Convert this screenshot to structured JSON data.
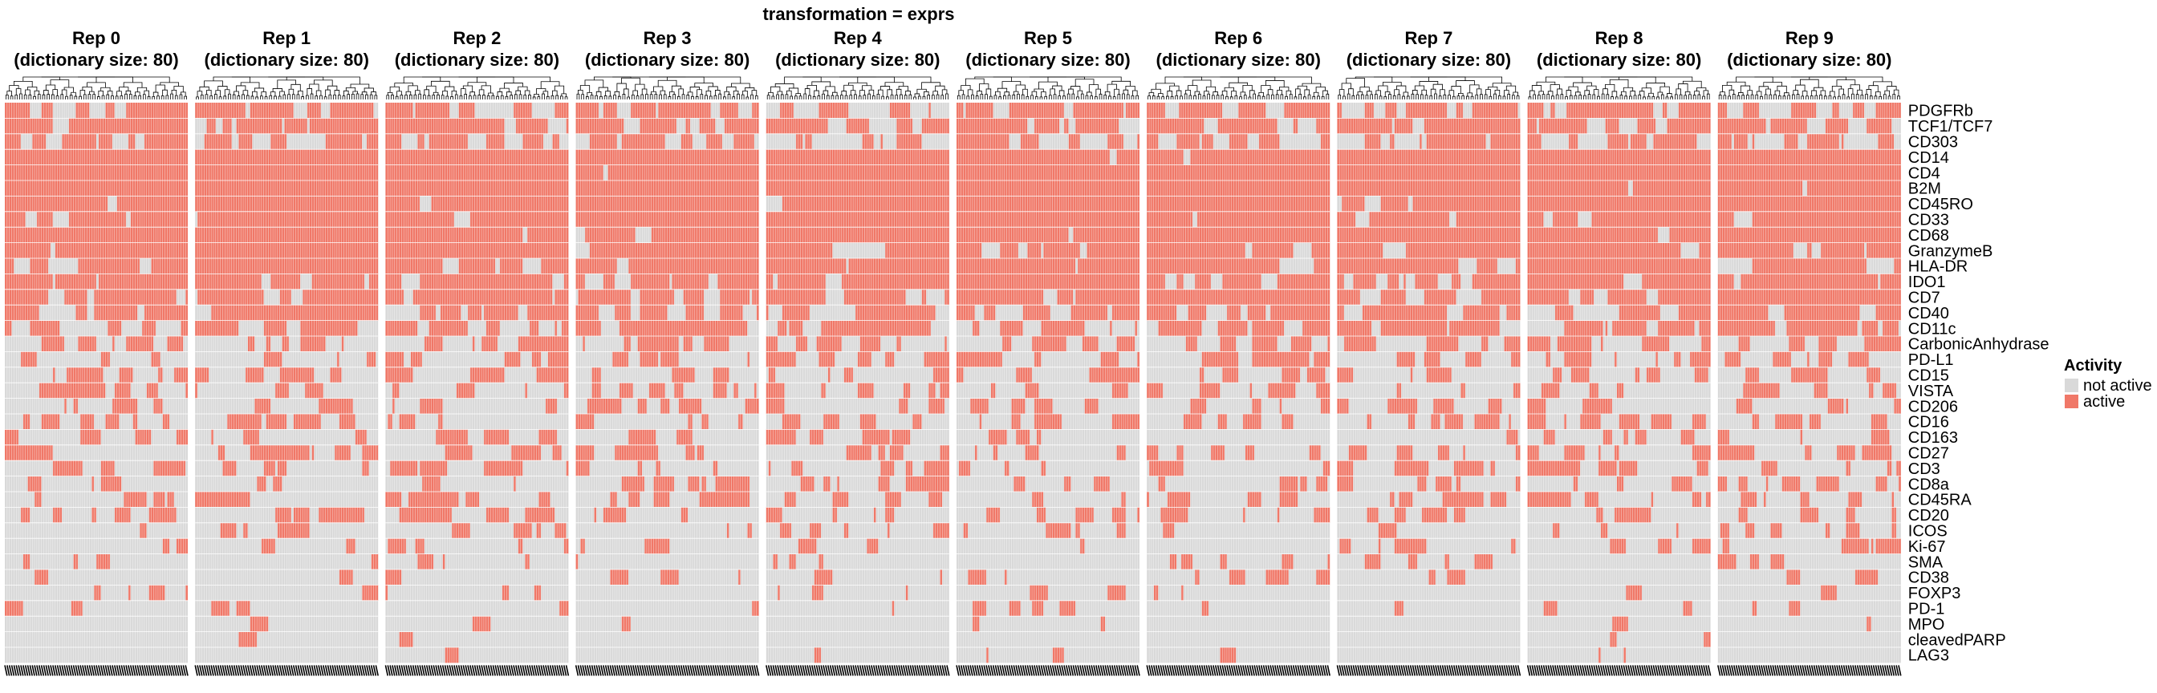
{
  "chart_data": {
    "type": "heatmap",
    "title": "transformation = exprs",
    "facets": [
      {
        "label": "Rep 0",
        "sublabel": "(dictionary size: 80)"
      },
      {
        "label": "Rep 1",
        "sublabel": "(dictionary size: 80)"
      },
      {
        "label": "Rep 2",
        "sublabel": "(dictionary size: 80)"
      },
      {
        "label": "Rep 3",
        "sublabel": "(dictionary size: 80)"
      },
      {
        "label": "Rep 4",
        "sublabel": "(dictionary size: 80)"
      },
      {
        "label": "Rep 5",
        "sublabel": "(dictionary size: 80)"
      },
      {
        "label": "Rep 6",
        "sublabel": "(dictionary size: 80)"
      },
      {
        "label": "Rep 7",
        "sublabel": "(dictionary size: 80)"
      },
      {
        "label": "Rep 8",
        "sublabel": "(dictionary size: 80)"
      },
      {
        "label": "Rep 9",
        "sublabel": "(dictionary size: 80)"
      }
    ],
    "columns_per_facet": 80,
    "rows": [
      "PDGFRb",
      "TCF1/TCF7",
      "CD303",
      "CD14",
      "CD4",
      "B2M",
      "CD45RO",
      "CD33",
      "CD68",
      "GranzymeB",
      "HLA-DR",
      "IDO1",
      "CD7",
      "CD40",
      "CD11c",
      "CarbonicAnhydrase",
      "PD-L1",
      "CD15",
      "VISTA",
      "CD206",
      "CD16",
      "CD163",
      "CD27",
      "CD3",
      "CD8a",
      "CD45RA",
      "CD20",
      "ICOS",
      "Ki-67",
      "SMA",
      "CD38",
      "FOXP3",
      "PD-1",
      "MPO",
      "cleavedPARP",
      "LAG3"
    ],
    "approx_active_fraction": [
      0.6,
      0.72,
      0.55,
      0.98,
      0.98,
      0.97,
      0.96,
      0.95,
      0.94,
      0.9,
      0.88,
      0.86,
      0.82,
      0.72,
      0.62,
      0.48,
      0.4,
      0.36,
      0.32,
      0.3,
      0.27,
      0.24,
      0.33,
      0.3,
      0.28,
      0.3,
      0.24,
      0.2,
      0.16,
      0.12,
      0.1,
      0.08,
      0.06,
      0.05,
      0.03,
      0.02
    ],
    "legend": {
      "title": "Activity",
      "entries": [
        {
          "label": "not active",
          "color": "#d9d9d9"
        },
        {
          "label": "active",
          "color": "#f07868"
        }
      ],
      "placement": "right"
    },
    "x_tick_labels_note": "dense overlapping column labels at bottom (illegible)"
  }
}
